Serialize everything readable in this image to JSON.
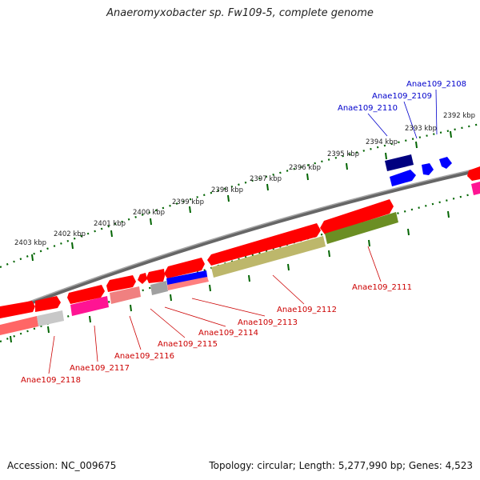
{
  "title": "Anaeromyxobacter sp. Fw109-5, complete genome",
  "footer": {
    "accession": "Accession: NC_009675",
    "summary": "Topology: circular; Length: 5,277,990 bp; Genes: 4,523"
  },
  "colors": {
    "forward_gene": "#ff0000",
    "forward_gene_highlight": "#ff6666",
    "blue_gene": "#0000ff",
    "dark_blue_gene": "#000080",
    "backbone": "#7f7f7f",
    "tick": "#006400",
    "label_red": "#cc0000",
    "label_blue": "#0000cc"
  },
  "ruler": {
    "unit": "kbp",
    "ticks": [
      {
        "kbp": 2403,
        "label": "2403 kbp"
      },
      {
        "kbp": 2402,
        "label": "2402 kbp"
      },
      {
        "kbp": 2401,
        "label": "2401 kbp"
      },
      {
        "kbp": 2400,
        "label": "2400 kbp"
      },
      {
        "kbp": 2399,
        "label": "2399 kbp"
      },
      {
        "kbp": 2398,
        "label": "2398 kbp"
      },
      {
        "kbp": 2397,
        "label": "2397 kbp"
      },
      {
        "kbp": 2396,
        "label": "2396 kbp"
      },
      {
        "kbp": 2395,
        "label": "2395 kbp"
      },
      {
        "kbp": 2394,
        "label": "2394 kbp"
      },
      {
        "kbp": 2393,
        "label": "2393 kbp"
      },
      {
        "kbp": 2392,
        "label": "2392 kbp"
      }
    ]
  },
  "gene_labels": [
    {
      "name": "Anae109_2108",
      "color": "blue"
    },
    {
      "name": "Anae109_2109",
      "color": "blue"
    },
    {
      "name": "Anae109_2110",
      "color": "blue"
    },
    {
      "name": "Anae109_2111",
      "color": "red"
    },
    {
      "name": "Anae109_2112",
      "color": "red"
    },
    {
      "name": "Anae109_2113",
      "color": "red"
    },
    {
      "name": "Anae109_2114",
      "color": "red"
    },
    {
      "name": "Anae109_2115",
      "color": "red"
    },
    {
      "name": "Anae109_2116",
      "color": "red"
    },
    {
      "name": "Anae109_2117",
      "color": "red"
    },
    {
      "name": "Anae109_2118",
      "color": "red"
    }
  ]
}
